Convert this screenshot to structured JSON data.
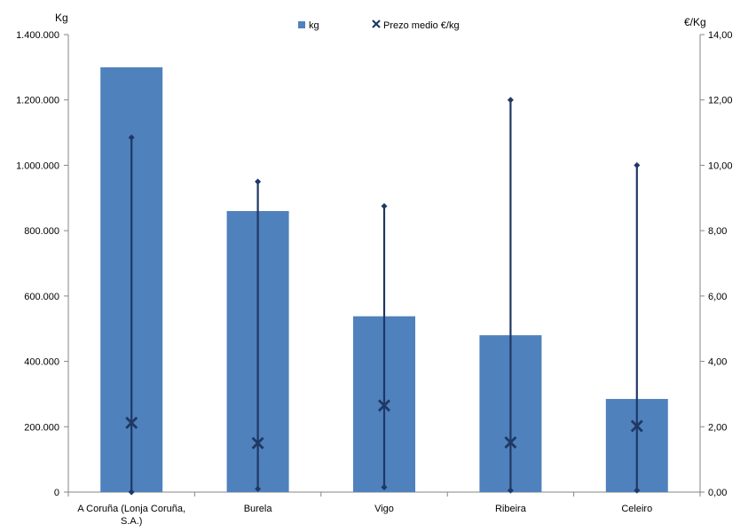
{
  "chart_data": {
    "type": "bar",
    "categories": [
      "A Coruña (Lonja Coruña, S.A.)",
      "Burela",
      "Vigo",
      "Ribeira",
      "Celeiro"
    ],
    "category_label_lines": [
      [
        "A Coruña (Lonja Coruña,",
        "S.A.)"
      ],
      [
        "Burela"
      ],
      [
        "Vigo"
      ],
      [
        "Ribeira"
      ],
      [
        "Celeiro"
      ]
    ],
    "series": [
      {
        "name": "kg",
        "axis": "left",
        "kind": "bar",
        "color": "#4F81BD",
        "values": [
          1300000,
          860000,
          538000,
          480000,
          285000
        ]
      },
      {
        "name": "Prezo medio €/kg",
        "axis": "right",
        "kind": "marker-with-range",
        "color": "#1F3864",
        "values": [
          2.12,
          1.5,
          2.65,
          1.52,
          2.02
        ],
        "min": [
          0.0,
          0.1,
          0.15,
          0.05,
          0.05
        ],
        "max": [
          10.85,
          9.5,
          8.75,
          12.0,
          10.0
        ]
      }
    ],
    "y_left": {
      "label": "Kg",
      "min": 0,
      "max": 1400000,
      "step": 200000,
      "ticks": [
        "0",
        "200.000",
        "400.000",
        "600.000",
        "800.000",
        "1.000.000",
        "1.200.000",
        "1.400.000"
      ]
    },
    "y_right": {
      "label": "€/Kg",
      "min": 0,
      "max": 14,
      "step": 2,
      "ticks": [
        "0,00",
        "2,00",
        "4,00",
        "6,00",
        "8,00",
        "10,00",
        "12,00",
        "14,00"
      ]
    },
    "grid": false,
    "legend_position": "top"
  }
}
